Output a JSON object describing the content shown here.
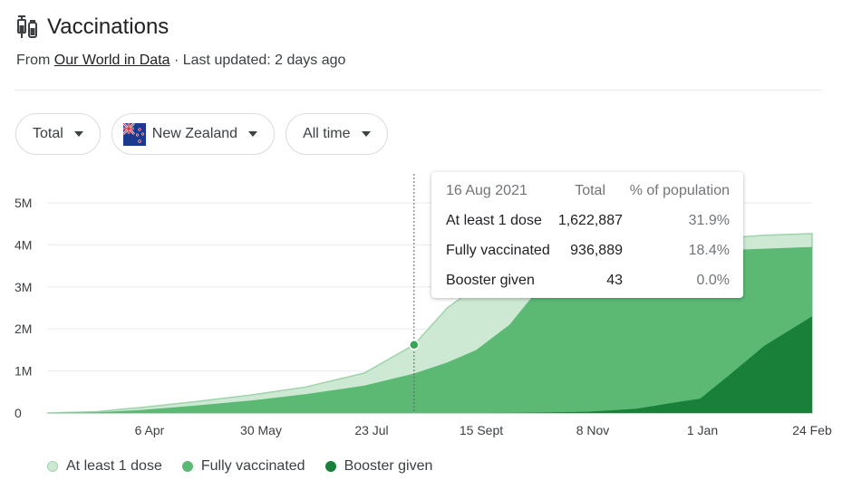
{
  "header": {
    "title": "Vaccinations",
    "source_prefix": "From ",
    "source_link": "Our World in Data",
    "source_suffix": " · Last updated: 2 days ago",
    "icon": "syringe-icon"
  },
  "filters": [
    {
      "label": "Total"
    },
    {
      "label": "New Zealand",
      "flag": "new-zealand-flag-icon"
    },
    {
      "label": "All time"
    }
  ],
  "colors": {
    "at_least_one": "#cde8d3",
    "at_least_one_edge": "#9fd3ab",
    "fully": "#5bb974",
    "booster": "#188038",
    "grid": "#e8eaed",
    "marker": "#34a853"
  },
  "tooltip": {
    "date": "16 Aug 2021",
    "col_total": "Total",
    "col_pct": "% of population",
    "rows": [
      {
        "label": "At least 1 dose",
        "total": "1,622,887",
        "pct": "31.9%"
      },
      {
        "label": "Fully vaccinated",
        "total": "936,889",
        "pct": "18.4%"
      },
      {
        "label": "Booster given",
        "total": "43",
        "pct": "0.0%"
      }
    ]
  },
  "chart_data": {
    "type": "area",
    "x_ticks": [
      "6 Apr",
      "30 May",
      "23 Jul",
      "15 Sept",
      "8 Nov",
      "1 Jan",
      "24 Feb"
    ],
    "y_ticks": [
      "0",
      "1M",
      "2M",
      "3M",
      "4M",
      "5M"
    ],
    "ylim": [
      0,
      5000000
    ],
    "grid": true,
    "legend_position": "bottom-left",
    "x": [
      "2021-02-20",
      "2021-03-15",
      "2021-04-06",
      "2021-05-01",
      "2021-05-30",
      "2021-06-25",
      "2021-07-23",
      "2021-08-16",
      "2021-09-01",
      "2021-09-15",
      "2021-10-01",
      "2021-10-15",
      "2021-11-08",
      "2021-12-01",
      "2021-12-20",
      "2022-01-01",
      "2022-01-15",
      "2022-02-01",
      "2022-02-24"
    ],
    "series": [
      {
        "name": "At least 1 dose",
        "values": [
          0,
          30000,
          130000,
          260000,
          430000,
          620000,
          950000,
          1622887,
          2500000,
          3000000,
          3350000,
          3700000,
          3900000,
          4000000,
          4050000,
          4080000,
          4170000,
          4230000,
          4270000
        ]
      },
      {
        "name": "Fully vaccinated",
        "values": [
          0,
          15000,
          70000,
          170000,
          300000,
          450000,
          650000,
          936889,
          1200000,
          1500000,
          2100000,
          2950000,
          3400000,
          3700000,
          3800000,
          3840000,
          3880000,
          3910000,
          3950000
        ]
      },
      {
        "name": "Booster given",
        "values": [
          0,
          0,
          0,
          0,
          0,
          0,
          0,
          43,
          200,
          500,
          2000,
          10000,
          30000,
          100000,
          250000,
          340000,
          900000,
          1600000,
          2300000
        ]
      }
    ]
  }
}
